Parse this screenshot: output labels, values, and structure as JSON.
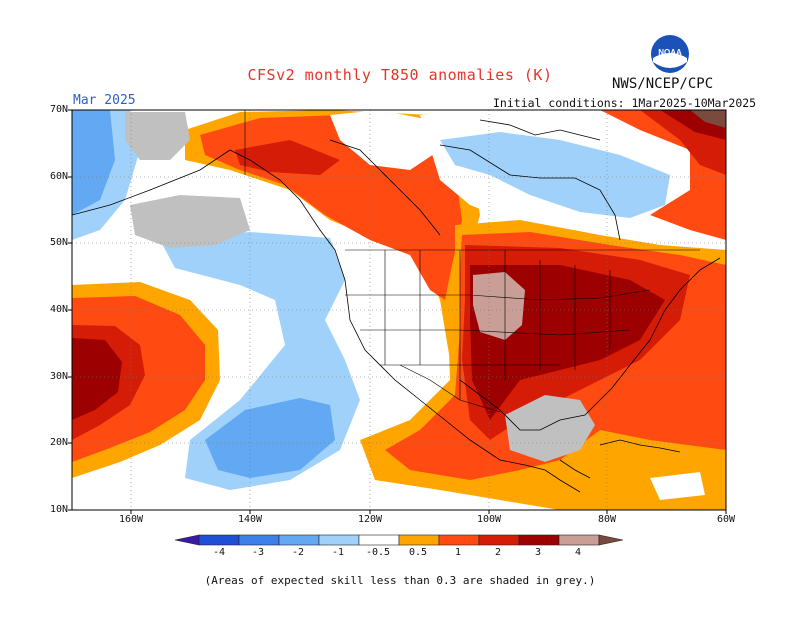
{
  "header": {
    "title": "CFSv2 monthly T850 anomalies (K)",
    "org": "NWS/NCEP/CPC",
    "logo_text": "NOAA",
    "valid": "Mar 2025",
    "init": "Initial conditions: 1Mar2025-10Mar2025"
  },
  "axes": {
    "lat_labels": [
      "70N",
      "60N",
      "50N",
      "40N",
      "30N",
      "20N",
      "10N"
    ],
    "lon_labels": [
      "160W",
      "140W",
      "120W",
      "100W",
      "80W",
      "60W"
    ]
  },
  "legend": {
    "labels": [
      "-4",
      "-3",
      "-2",
      "-1",
      "-0.5",
      "0.5",
      "1",
      "2",
      "3",
      "4"
    ],
    "colors": [
      "#3a1aa8",
      "#1f4fd6",
      "#3d80ea",
      "#62a8f2",
      "#9fd1fb",
      "#ffffff",
      "#ffa500",
      "#ff4a12",
      "#d51c07",
      "#9c0000",
      "#c89e96",
      "#7a4a3e"
    ]
  },
  "footnote": "(Areas of expected skill less than 0.3 are shaded in grey.)"
}
